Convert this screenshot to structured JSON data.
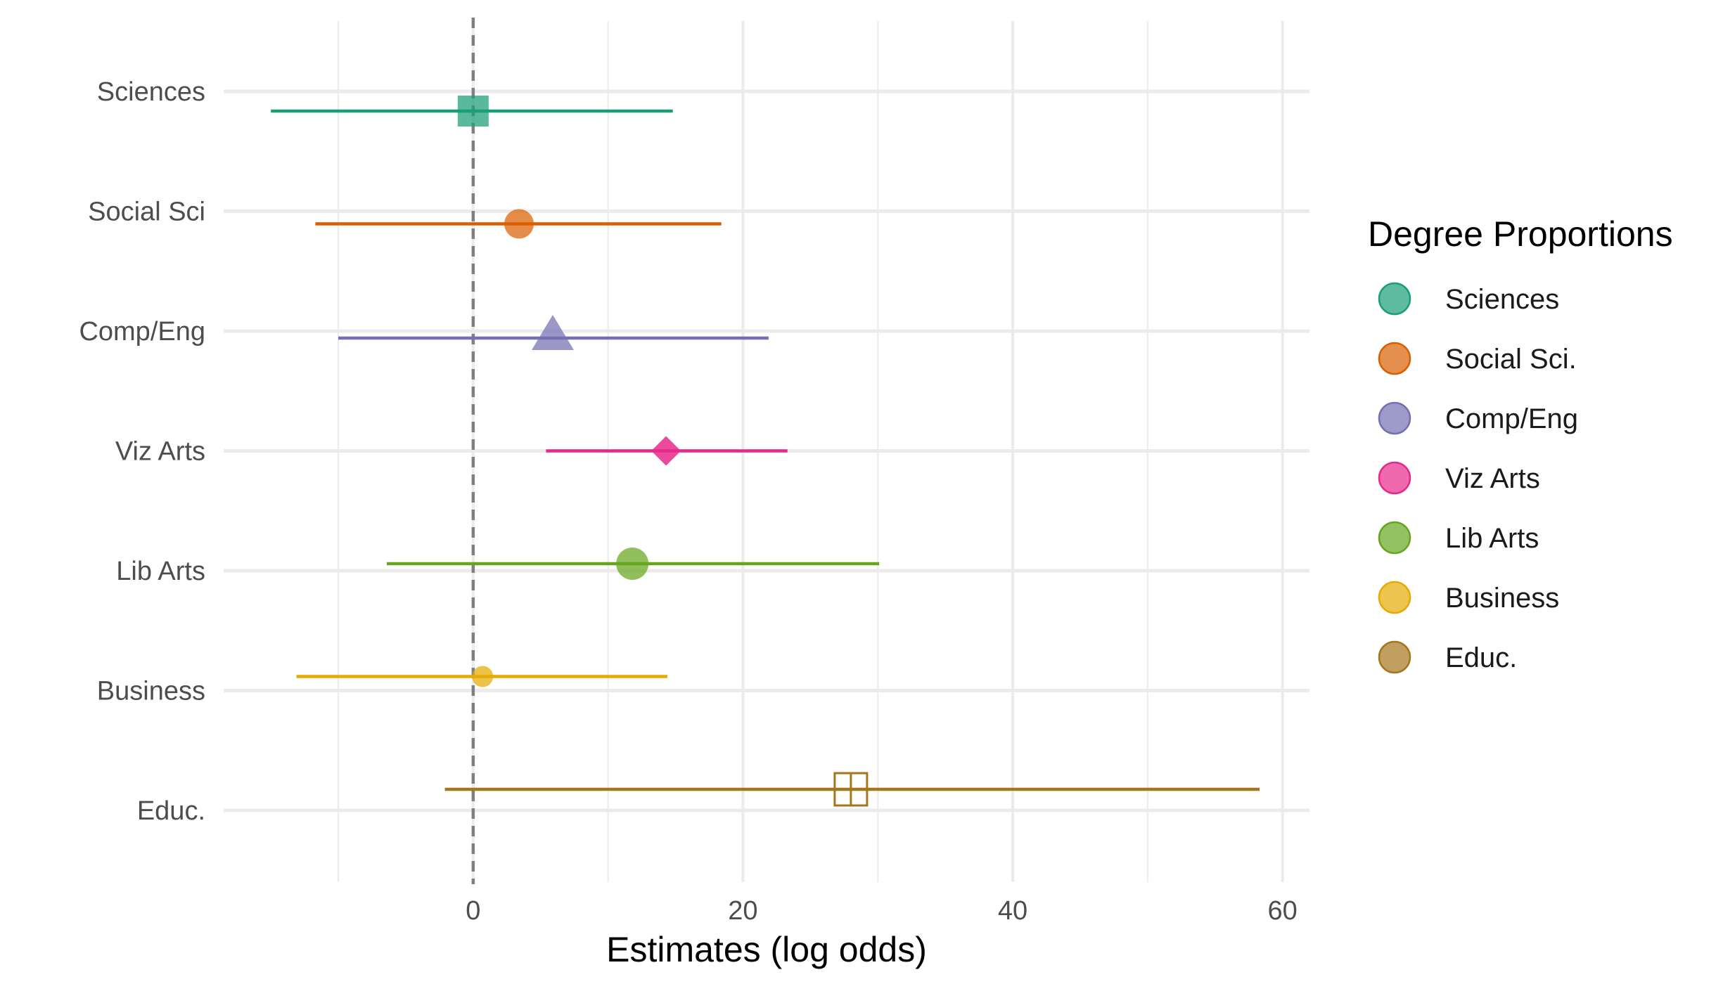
{
  "chart_data": {
    "type": "scatter",
    "xlabel": "Estimates (log odds)",
    "xlim": [
      -18.5,
      62
    ],
    "x_ticks": [
      "0",
      "20",
      "40",
      "60"
    ],
    "grid": true,
    "reference_line": {
      "x": 0,
      "style": "dashed"
    },
    "categories": [
      "Sciences",
      "Social Sci",
      "Comp/Eng",
      "Viz Arts",
      "Lib Arts",
      "Business",
      "Educ."
    ],
    "series": [
      {
        "category": "Sciences",
        "estimate": 0.0,
        "lower": -15.0,
        "upper": 14.8,
        "color": "#1b9e77",
        "shape": "square"
      },
      {
        "category": "Social Sci",
        "estimate": 3.4,
        "lower": -11.7,
        "upper": 18.4,
        "color": "#d95f02",
        "shape": "circle"
      },
      {
        "category": "Comp/Eng",
        "estimate": 5.9,
        "lower": -10.0,
        "upper": 21.9,
        "color": "#7570b3",
        "shape": "triangle"
      },
      {
        "category": "Viz Arts",
        "estimate": 14.3,
        "lower": 5.4,
        "upper": 23.3,
        "color": "#e7298a",
        "shape": "diamond"
      },
      {
        "category": "Lib Arts",
        "estimate": 11.8,
        "lower": -6.4,
        "upper": 30.1,
        "color": "#66a61e",
        "shape": "circle"
      },
      {
        "category": "Business",
        "estimate": 0.7,
        "lower": -13.1,
        "upper": 14.4,
        "color": "#e6ab02",
        "shape": "circle"
      },
      {
        "category": "Educ.",
        "estimate": 28.0,
        "lower": -2.1,
        "upper": 58.3,
        "color": "#a6761d",
        "shape": "square-cross"
      }
    ],
    "legend": {
      "title": "Degree Proportions",
      "position": "right",
      "entries": [
        {
          "label": "Sciences",
          "color": "#1b9e77"
        },
        {
          "label": "Social Sci.",
          "color": "#d95f02"
        },
        {
          "label": "Comp/Eng",
          "color": "#7570b3"
        },
        {
          "label": "Viz Arts",
          "color": "#e7298a"
        },
        {
          "label": "Lib Arts",
          "color": "#66a61e"
        },
        {
          "label": "Business",
          "color": "#e6ab02"
        },
        {
          "label": "Educ.",
          "color": "#a6761d"
        }
      ]
    }
  }
}
